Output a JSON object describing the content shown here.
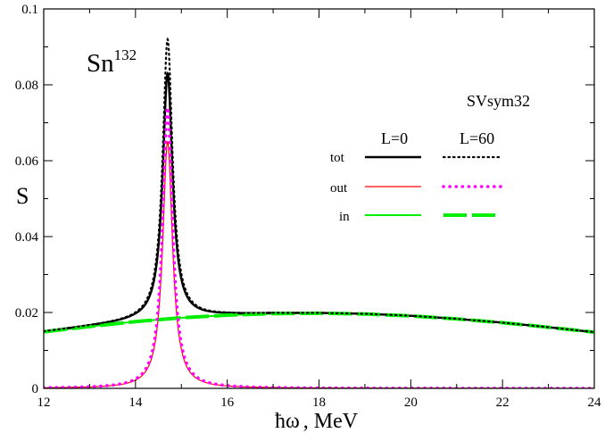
{
  "chart_data": {
    "type": "line",
    "title": "",
    "nucleus": {
      "symbol": "Sn",
      "mass_number": "132"
    },
    "force_label": "SVsym32",
    "xlabel": {
      "symbol": "ħω",
      "unit": ", MeV"
    },
    "ylabel": "S",
    "xlim": [
      12,
      24
    ],
    "ylim": [
      0,
      0.1
    ],
    "xticks": [
      12,
      14,
      16,
      18,
      20,
      22,
      24
    ],
    "xtick_labels": [
      "12",
      "14",
      "16",
      "18",
      "20",
      "22",
      "24"
    ],
    "yticks": [
      0,
      0.02,
      0.04,
      0.06,
      0.08,
      0.1
    ],
    "ytick_labels": [
      "0",
      "0.02",
      "0.04",
      "0.06",
      "0.08",
      "0.1"
    ],
    "grid": false,
    "legend_header": {
      "col1": "L=0",
      "col2": "L=60"
    },
    "legend_rows": [
      "tot",
      "out",
      "in"
    ],
    "colors": {
      "tot": "#000000",
      "out": "#ff0000",
      "out_L60": "#ff00ff",
      "in": "#00ee00"
    },
    "peak": {
      "x": 14.7,
      "width": 0.13
    },
    "series": [
      {
        "name": "tot",
        "L": "L=0",
        "style": "solid",
        "peak_value": 0.083
      },
      {
        "name": "out",
        "L": "L=0",
        "style": "solid",
        "peak_value": 0.065
      },
      {
        "name": "in",
        "L": "L=0",
        "style": "solid",
        "x": [
          12,
          13,
          14,
          15,
          16,
          17,
          18,
          19,
          20,
          21,
          22,
          23,
          24
        ],
        "values": [
          0.0149,
          0.0163,
          0.0176,
          0.0186,
          0.0193,
          0.0197,
          0.0198,
          0.0196,
          0.0191,
          0.0183,
          0.0173,
          0.0161,
          0.0148
        ]
      },
      {
        "name": "tot",
        "L": "L=60",
        "style": "dotted",
        "peak_value": 0.092
      },
      {
        "name": "out",
        "L": "L=60",
        "style": "dotted",
        "peak_value": 0.074
      },
      {
        "name": "in",
        "L": "L=60",
        "style": "dashed",
        "x": [
          12,
          13,
          14,
          15,
          16,
          17,
          18,
          19,
          20,
          21,
          22,
          23,
          24
        ],
        "values": [
          0.0149,
          0.0163,
          0.0176,
          0.0186,
          0.0193,
          0.0197,
          0.0198,
          0.0196,
          0.0191,
          0.0183,
          0.0173,
          0.0161,
          0.0148
        ]
      }
    ]
  }
}
